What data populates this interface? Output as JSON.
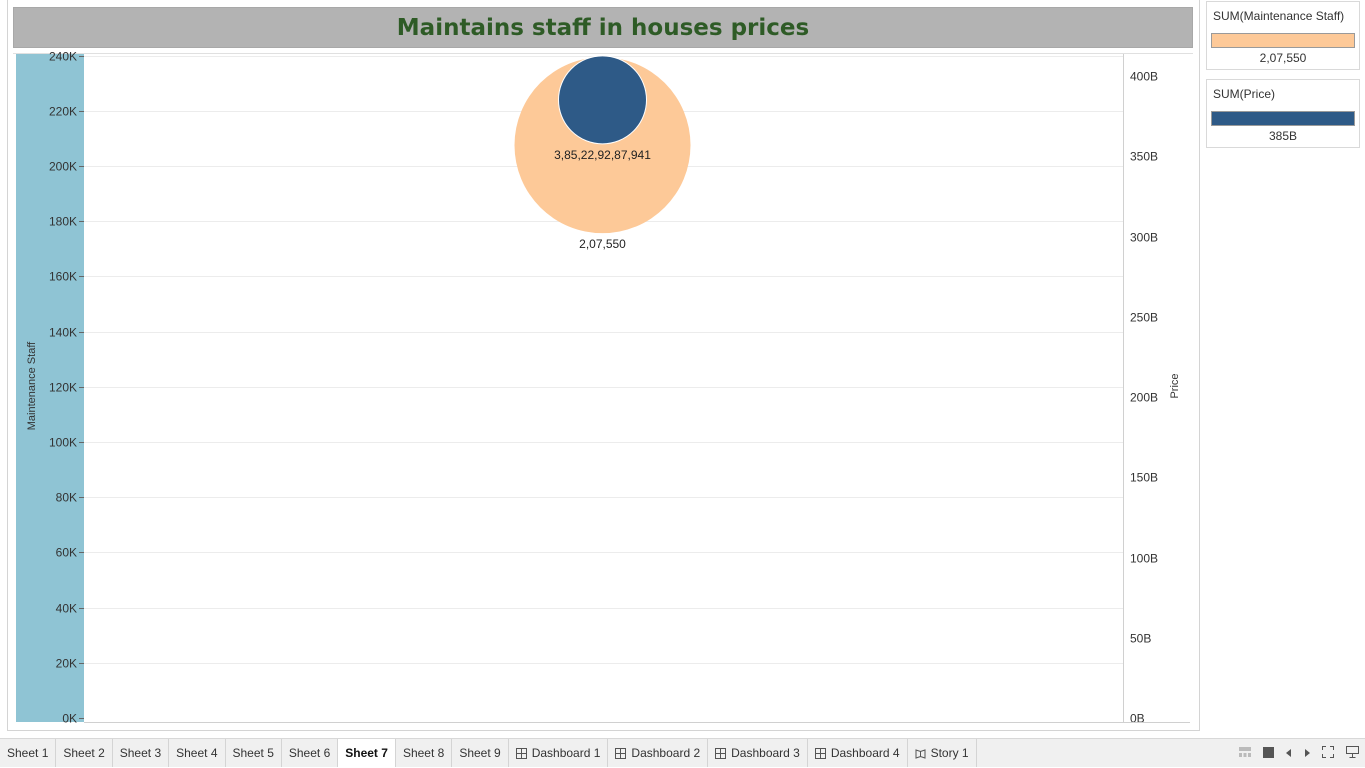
{
  "title": "Maintains staff in houses prices",
  "chart_data": {
    "type": "scatter",
    "mark": "circle",
    "dual_axis": true,
    "left_axis": {
      "label": "Maintenance Staff",
      "range": [
        0,
        250000
      ],
      "ticks": [
        0,
        20000,
        40000,
        60000,
        80000,
        100000,
        120000,
        140000,
        160000,
        180000,
        200000,
        220000,
        240000
      ],
      "tick_labels": [
        "0K",
        "20K",
        "40K",
        "60K",
        "80K",
        "100K",
        "120K",
        "140K",
        "160K",
        "180K",
        "200K",
        "220K",
        "240K"
      ]
    },
    "right_axis": {
      "label": "Price",
      "range": [
        0,
        430000000000
      ],
      "ticks": [
        0,
        50000000000,
        100000000000,
        150000000000,
        200000000000,
        250000000000,
        300000000000,
        350000000000,
        400000000000
      ],
      "tick_labels": [
        "0B",
        "50B",
        "100B",
        "150B",
        "200B",
        "250B",
        "300B",
        "350B",
        "400B"
      ]
    },
    "series": [
      {
        "name": "SUM(Maintenance Staff)",
        "axis": "left",
        "value": 207550,
        "label": "2,07,550",
        "color": "#fdc998"
      },
      {
        "name": "SUM(Price)",
        "axis": "right",
        "value": 385229287941,
        "label": "3,85,22,92,87,941",
        "color": "#2e5a87"
      }
    ],
    "grid": true
  },
  "legends": [
    {
      "title": "SUM(Maintenance Staff)",
      "color": "#fdc998",
      "value": "2,07,550"
    },
    {
      "title": "SUM(Price)",
      "color": "#2e5a87",
      "value": "385B"
    }
  ],
  "tabs": [
    {
      "label": "Sheet 1",
      "icon": ""
    },
    {
      "label": "Sheet 2",
      "icon": ""
    },
    {
      "label": "Sheet 3",
      "icon": ""
    },
    {
      "label": "Sheet 4",
      "icon": ""
    },
    {
      "label": "Sheet 5",
      "icon": ""
    },
    {
      "label": "Sheet 6",
      "icon": ""
    },
    {
      "label": "Sheet 7",
      "icon": "",
      "active": true
    },
    {
      "label": "Sheet 8",
      "icon": ""
    },
    {
      "label": "Sheet 9",
      "icon": ""
    },
    {
      "label": "Dashboard 1",
      "icon": "dashboard-icon"
    },
    {
      "label": "Dashboard 2",
      "icon": "dashboard-icon"
    },
    {
      "label": "Dashboard 3",
      "icon": "dashboard-icon"
    },
    {
      "label": "Dashboard 4",
      "icon": "dashboard-icon"
    },
    {
      "label": "Story 1",
      "icon": "story-icon"
    }
  ],
  "controls": [
    "show-filmstrip-icon",
    "show-tabs-icon",
    "previous-sheet-icon",
    "next-sheet-icon",
    "fullscreen-icon",
    "presentation-mode-icon"
  ]
}
